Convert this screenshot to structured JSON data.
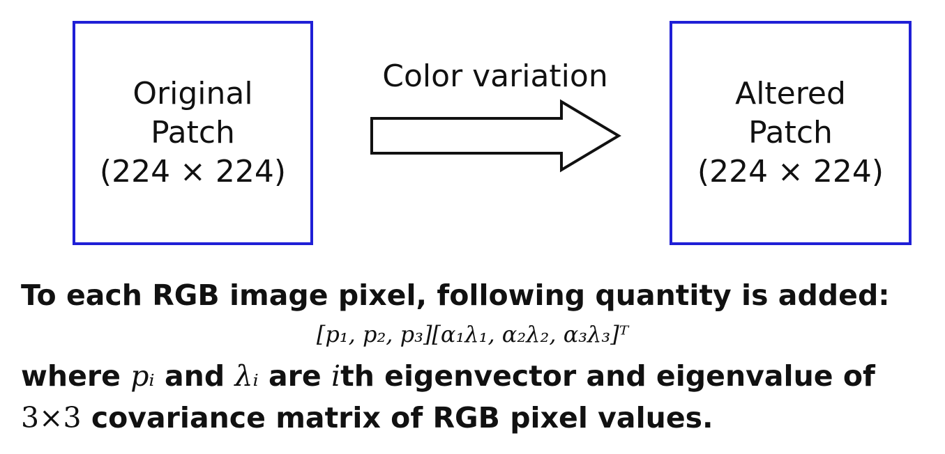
{
  "diagram": {
    "left_box": {
      "lines": [
        "Original",
        "Patch",
        "(224 × 224)"
      ]
    },
    "arrow": {
      "label": "Color variation"
    },
    "right_box": {
      "lines": [
        "Altered",
        "Patch",
        "(224 × 224)"
      ]
    },
    "colors": {
      "box_border": "#1f1fd6",
      "text": "#111111",
      "arrow_stroke": "#111111"
    }
  },
  "caption": {
    "line1": "To each RGB image pixel, following quantity is added:",
    "formula": "[p₁, p₂, p₃][α₁λ₁, α₂λ₂, α₃λ₃]ᵀ",
    "line3": {
      "w1": "where",
      "p_i": "pᵢ",
      "w2": "and",
      "lambda_i": "λᵢ",
      "w3": "are",
      "i": "i",
      "w4": "th eigenvector and eigenvalue of"
    },
    "line4": {
      "dims": "3×3",
      "rest": "covariance matrix of RGB pixel values."
    }
  }
}
